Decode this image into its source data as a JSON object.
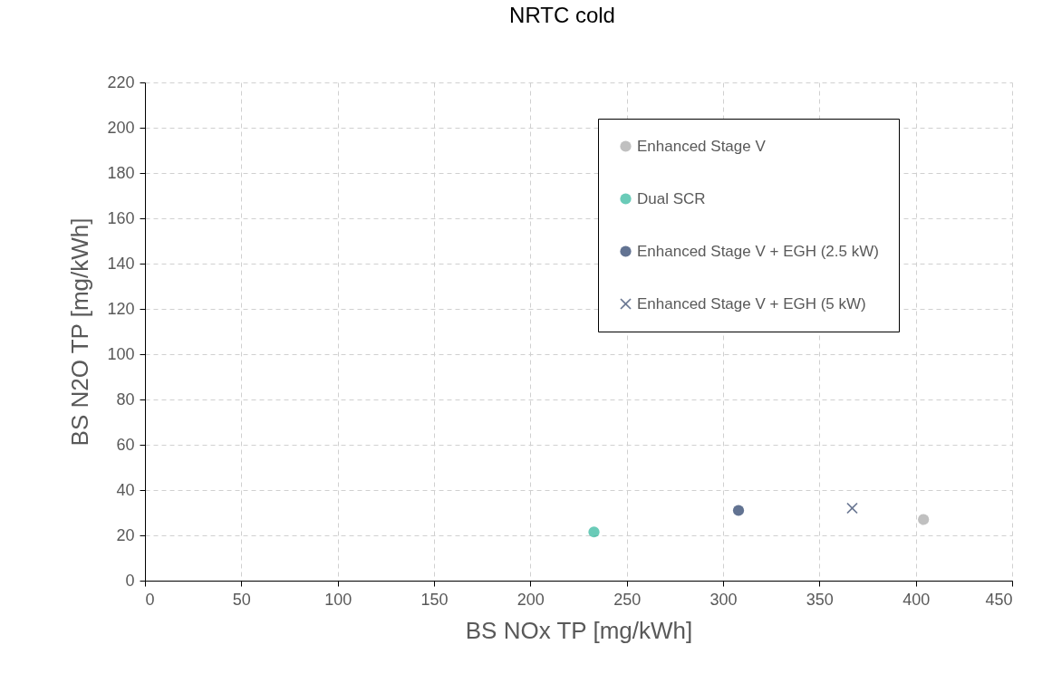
{
  "chart_data": {
    "type": "scatter",
    "title": "NRTC cold",
    "xlabel": "BS NOx TP [mg/kWh]",
    "ylabel": "BS N2O TP [mg/kWh]",
    "xlim": [
      0,
      450
    ],
    "xticks": [
      0,
      50,
      100,
      150,
      200,
      250,
      300,
      350,
      400,
      450
    ],
    "ylim": [
      0,
      220
    ],
    "yticks": [
      0,
      20,
      40,
      60,
      80,
      100,
      120,
      140,
      160,
      180,
      200,
      220
    ],
    "grid": true,
    "legend": "top right",
    "series": [
      {
        "name": "Enhanced Stage V",
        "color": "#a5a5a5",
        "marker": "circle",
        "x": [
          404
        ],
        "values": [
          27
        ]
      },
      {
        "name": "Dual SCR",
        "color": "#2bb59a",
        "marker": "circle",
        "x": [
          233
        ],
        "values": [
          21.5
        ]
      },
      {
        "name": "Enhanced Stage V + EGH (2.5 kW)",
        "color": "#1f3864",
        "marker": "circle",
        "x": [
          308
        ],
        "values": [
          31
        ]
      },
      {
        "name": "Enhanced Stage V + EGH (5 kW)",
        "color": "#2e4066",
        "marker": "cross",
        "x": [
          367
        ],
        "values": [
          32
        ]
      }
    ]
  }
}
